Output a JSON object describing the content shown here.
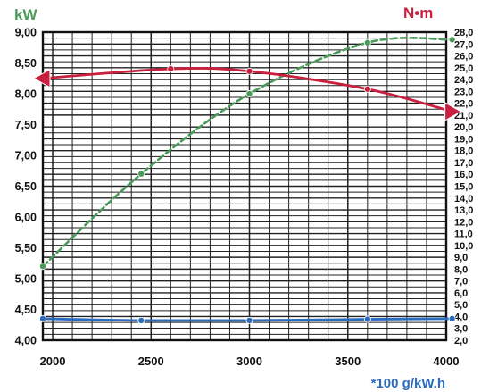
{
  "chart_data": {
    "type": "line",
    "x": [
      1950,
      2500,
      3000,
      3500,
      4000
    ],
    "xlim": [
      1950,
      4000
    ],
    "x_ticks": [
      "2000",
      "2500",
      "3000",
      "3500",
      "4000"
    ],
    "left_axis": {
      "label": "kW",
      "ylim": [
        4.0,
        9.0
      ],
      "ticks": [
        "9,00",
        "8,50",
        "8,00",
        "7,50",
        "7,00",
        "6,50",
        "6,00",
        "5,50",
        "5,00",
        "4,50",
        "4,00"
      ]
    },
    "right_axis": {
      "label": "N•m",
      "ylim": [
        2.0,
        28.0
      ],
      "ticks": [
        "28,0",
        "27,0",
        "26,0",
        "25,0",
        "24,0",
        "23,0",
        "22,0",
        "21,0",
        "20,0",
        "19,0",
        "18,0",
        "17,0",
        "16,0",
        "15,0",
        "14,0",
        "13,0",
        "12,0",
        "11,0",
        "10,0",
        "9,0",
        "8,0",
        "7,0",
        "6,0",
        "5,0",
        "4,0",
        "3,0",
        "2,0"
      ]
    },
    "footnote": "*100 g/kW.h",
    "grid": true,
    "series": [
      {
        "axis": "left",
        "color": "#4a9a5a",
        "style": "dashed",
        "marker": "circle",
        "x": [
          1950,
          2450,
          3000,
          3600,
          4030
        ],
        "values": [
          5.2,
          6.7,
          8.0,
          8.83,
          8.88
        ]
      },
      {
        "axis": "right",
        "color": "#c8203e",
        "style": "solid",
        "marker": "circle",
        "end_markers": "triangle",
        "x": [
          1950,
          2600,
          3000,
          3600,
          4030
        ],
        "values": [
          24.1,
          24.9,
          24.7,
          23.2,
          21.3
        ]
      },
      {
        "axis": "left",
        "color": "#2a6cc0",
        "style": "solid",
        "marker": "circle",
        "x": [
          1950,
          2450,
          3000,
          3600,
          4030
        ],
        "values": [
          4.35,
          4.32,
          4.32,
          4.34,
          4.35
        ]
      }
    ]
  }
}
